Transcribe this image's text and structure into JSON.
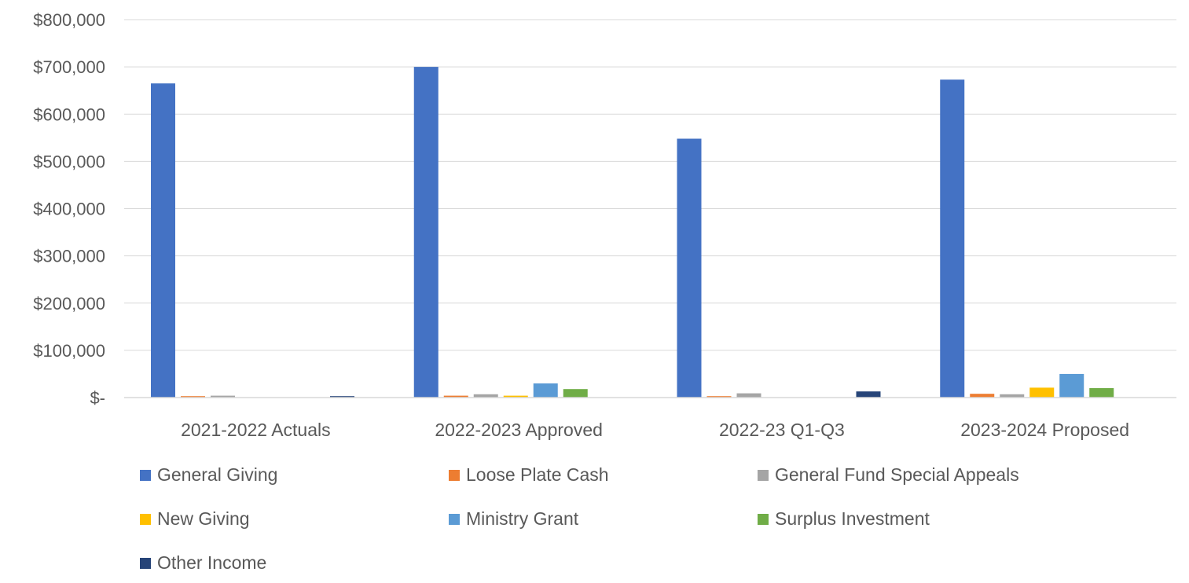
{
  "chart_data": {
    "type": "bar",
    "title": "",
    "xlabel": "",
    "ylabel": "",
    "ylim": [
      0,
      800000
    ],
    "yticks": [
      0,
      100000,
      200000,
      300000,
      400000,
      500000,
      600000,
      700000,
      800000
    ],
    "ytick_labels": [
      "$-",
      "$100,000",
      "$200,000",
      "$300,000",
      "$400,000",
      "$500,000",
      "$600,000",
      "$700,000",
      "$800,000"
    ],
    "grid": true,
    "legend_position": "bottom",
    "categories": [
      "2021-2022 Actuals",
      "2022-2023 Approved",
      "2022-23 Q1-Q3",
      "2023-2024 Proposed"
    ],
    "series": [
      {
        "name": "General Giving",
        "color": "#4472C4",
        "values": [
          665000,
          700000,
          548000,
          673000
        ]
      },
      {
        "name": "Loose Plate Cash",
        "color": "#ED7D31",
        "values": [
          3000,
          4000,
          3000,
          8000
        ]
      },
      {
        "name": "General Fund Special Appeals",
        "color": "#A5A5A5",
        "values": [
          4000,
          7000,
          9000,
          7000
        ]
      },
      {
        "name": "New Giving",
        "color": "#FFC000",
        "values": [
          0,
          4000,
          0,
          21000
        ]
      },
      {
        "name": "Ministry Grant",
        "color": "#5B9BD5",
        "values": [
          0,
          30000,
          0,
          50000
        ]
      },
      {
        "name": "Surplus Investment",
        "color": "#70AD47",
        "values": [
          0,
          18000,
          0,
          20000
        ]
      },
      {
        "name": "Other Income",
        "color": "#264478",
        "values": [
          3000,
          0,
          13000,
          0
        ]
      }
    ]
  }
}
